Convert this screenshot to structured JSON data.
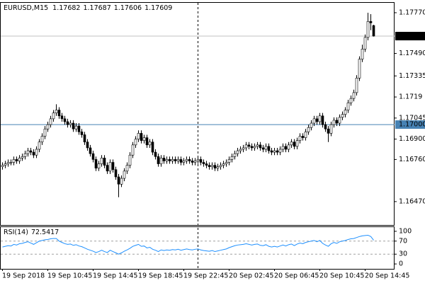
{
  "chart_data": [
    {
      "type": "candlestick",
      "title": "EURUSD,M15",
      "up_color": "#ffffff",
      "down_color": "#000000",
      "ylim": [
        1.16309,
        1.17838
      ],
      "yticks": [
        {
          "value": 1.1777,
          "label": "1.17770"
        },
        {
          "value": 1.1749,
          "label": "1.17490"
        },
        1.17335,
        1.1719,
        1.17045,
        {
          "value": 1.169,
          "label": "1.16900"
        },
        {
          "value": 1.1676,
          "label": "1.16760"
        },
        {
          "value": 1.1647,
          "label": "1.16470"
        }
      ],
      "price_lines": [
        {
          "value": 1.17609,
          "color": "#c0c0c0",
          "label_color": "#000000"
        },
        {
          "value": 1.17,
          "label": "1.17000",
          "color": "#4682b4",
          "label_color": "#4682b4"
        }
      ],
      "categories": [
        "19 Sep 2018",
        null,
        null,
        null,
        null,
        null,
        null,
        null,
        null,
        null,
        null,
        null,
        null,
        null,
        null,
        null,
        "19 Sep 10:45",
        null,
        null,
        null,
        null,
        null,
        null,
        null,
        null,
        null,
        null,
        null,
        null,
        null,
        null,
        null,
        "19 Sep 14:45",
        null,
        null,
        null,
        null,
        null,
        null,
        null,
        null,
        null,
        null,
        null,
        null,
        null,
        null,
        null,
        "19 Sep 18:45",
        null,
        null,
        null,
        null,
        null,
        null,
        null,
        null,
        null,
        null,
        null,
        null,
        null,
        null,
        null,
        "19 Sep 22:45",
        null,
        null,
        null,
        null,
        null,
        null,
        null,
        null,
        null,
        null,
        null,
        null,
        null,
        null,
        null,
        "20 Sep 02:45",
        null,
        null,
        null,
        null,
        null,
        null,
        null,
        null,
        null,
        null,
        null,
        null,
        null,
        null,
        null,
        "20 Sep 06:45",
        null,
        null,
        null,
        null,
        null,
        null,
        null,
        null,
        null,
        null,
        null,
        null,
        null,
        null,
        null,
        "20 Sep 10:45",
        null,
        null,
        null,
        null,
        null,
        null,
        null,
        null,
        null,
        null,
        null,
        null,
        null,
        null,
        null,
        "20 Sep 14:45",
        null,
        null,
        null
      ],
      "open": [
        1.1671,
        1.1672,
        1.1673,
        1.1674,
        1.1674,
        1.1676,
        1.1675,
        1.1677,
        1.1678,
        1.168,
        1.1682,
        1.1681,
        1.1679,
        1.1683,
        1.1688,
        1.1692,
        1.1697,
        1.17,
        1.1704,
        1.1708,
        1.171,
        1.1706,
        1.1704,
        1.1702,
        1.17,
        1.1701,
        1.1697,
        1.1699,
        1.1695,
        1.1693,
        1.1688,
        1.1684,
        1.168,
        1.1676,
        1.167,
        1.1673,
        1.1677,
        1.1672,
        1.1668,
        1.1674,
        1.1669,
        1.1664,
        1.1659,
        1.1663,
        1.1668,
        1.1672,
        1.1679,
        1.1686,
        1.169,
        1.1694,
        1.1689,
        1.1691,
        1.1686,
        1.1688,
        1.1681,
        1.1678,
        1.1673,
        1.1677,
        1.1675,
        1.1676,
        1.1675,
        1.1676,
        1.1675,
        1.1676,
        1.1674,
        1.1675,
        1.1676,
        1.1675,
        1.1674,
        1.1675,
        1.1676,
        1.1674,
        1.1673,
        1.1672,
        1.1671,
        1.1672,
        1.167,
        1.1671,
        1.1672,
        1.1673,
        1.1674,
        1.1676,
        1.1678,
        1.168,
        1.1682,
        1.1683,
        1.1684,
        1.1686,
        1.1685,
        1.1684,
        1.1685,
        1.1686,
        1.1684,
        1.1683,
        1.1685,
        1.1682,
        1.1681,
        1.1682,
        1.1681,
        1.1683,
        1.1685,
        1.1683,
        1.1686,
        1.1688,
        1.1685,
        1.1689,
        1.1692,
        1.1691,
        1.1695,
        1.1698,
        1.1701,
        1.1704,
        1.1702,
        1.1706,
        1.17,
        1.1697,
        1.1694,
        1.17,
        1.1703,
        1.1701,
        1.1705,
        1.1707,
        1.171,
        1.1715,
        1.1718,
        1.1722,
        1.1732,
        1.1745,
        1.1752,
        1.176,
        1.1771,
        1.17682
      ],
      "high": [
        1.1674,
        1.1675,
        1.1676,
        1.1676,
        1.1678,
        1.1678,
        1.1679,
        1.168,
        1.1682,
        1.1684,
        1.1684,
        1.1683,
        1.1685,
        1.169,
        1.1694,
        1.1699,
        1.1702,
        1.1706,
        1.171,
        1.1714,
        1.1712,
        1.1708,
        1.1706,
        1.1704,
        1.1703,
        1.1703,
        1.1701,
        1.1701,
        1.1697,
        1.1695,
        1.169,
        1.1686,
        1.1682,
        1.1678,
        1.1675,
        1.1679,
        1.1679,
        1.1674,
        1.1676,
        1.1676,
        1.1671,
        1.1666,
        1.1665,
        1.167,
        1.1674,
        1.1681,
        1.1688,
        1.1692,
        1.1696,
        1.1696,
        1.1693,
        1.1693,
        1.169,
        1.169,
        1.1683,
        1.168,
        1.1679,
        1.1679,
        1.1678,
        1.1678,
        1.1678,
        1.1678,
        1.1678,
        1.1678,
        1.1677,
        1.1678,
        1.1678,
        1.1677,
        1.1677,
        1.1678,
        1.1678,
        1.1676,
        1.1675,
        1.1674,
        1.1674,
        1.1674,
        1.1673,
        1.1674,
        1.1675,
        1.1676,
        1.1678,
        1.168,
        1.1682,
        1.1684,
        1.1685,
        1.1686,
        1.1688,
        1.1688,
        1.1687,
        1.1687,
        1.1688,
        1.1688,
        1.1686,
        1.1687,
        1.1687,
        1.1684,
        1.1684,
        1.1684,
        1.1685,
        1.1687,
        1.1687,
        1.1688,
        1.169,
        1.169,
        1.1691,
        1.1694,
        1.1694,
        1.1697,
        1.17,
        1.1703,
        1.1706,
        1.1706,
        1.1708,
        1.1708,
        1.1702,
        1.1699,
        1.1702,
        1.1705,
        1.1705,
        1.1707,
        1.1709,
        1.1712,
        1.1717,
        1.172,
        1.1724,
        1.1734,
        1.1747,
        1.1755,
        1.1762,
        1.1777,
        1.1776,
        1.17687
      ],
      "low": [
        1.1669,
        1.167,
        1.1671,
        1.1672,
        1.1672,
        1.1673,
        1.1673,
        1.1675,
        1.1676,
        1.1678,
        1.1679,
        1.1677,
        1.1677,
        1.1681,
        1.1686,
        1.169,
        1.1695,
        1.1698,
        1.1702,
        1.1706,
        1.1704,
        1.1702,
        1.17,
        1.1698,
        1.1698,
        1.1695,
        1.1695,
        1.1693,
        1.1691,
        1.1686,
        1.1682,
        1.1678,
        1.1674,
        1.1668,
        1.1668,
        1.1671,
        1.167,
        1.1666,
        1.1666,
        1.1667,
        1.1662,
        1.165,
        1.1657,
        1.1661,
        1.1666,
        1.167,
        1.1677,
        1.1684,
        1.1688,
        1.1687,
        1.1687,
        1.1684,
        1.1684,
        1.1679,
        1.1676,
        1.1671,
        1.1671,
        1.1673,
        1.1673,
        1.1673,
        1.1673,
        1.1673,
        1.1673,
        1.1672,
        1.1672,
        1.1673,
        1.1673,
        1.1672,
        1.1672,
        1.1673,
        1.1672,
        1.1671,
        1.167,
        1.1669,
        1.1669,
        1.1668,
        1.1668,
        1.1669,
        1.167,
        1.1671,
        1.1672,
        1.1674,
        1.1676,
        1.1678,
        1.168,
        1.1681,
        1.1682,
        1.1683,
        1.1682,
        1.1682,
        1.1683,
        1.1682,
        1.1681,
        1.1681,
        1.168,
        1.1679,
        1.1679,
        1.1679,
        1.1679,
        1.1681,
        1.1681,
        1.1681,
        1.1684,
        1.1683,
        1.1683,
        1.1687,
        1.1689,
        1.1689,
        1.1693,
        1.1696,
        1.1699,
        1.17,
        1.17,
        1.1698,
        1.1695,
        1.1688,
        1.1692,
        1.1698,
        1.1699,
        1.1699,
        1.1703,
        1.1705,
        1.1708,
        1.1713,
        1.1716,
        1.172,
        1.173,
        1.1743,
        1.175,
        1.1758,
        1.1765,
        1.17606
      ],
      "close": [
        1.1672,
        1.1673,
        1.1674,
        1.1674,
        1.1676,
        1.1675,
        1.1677,
        1.1678,
        1.168,
        1.1682,
        1.1681,
        1.1679,
        1.1683,
        1.1688,
        1.1692,
        1.1697,
        1.17,
        1.1704,
        1.1708,
        1.171,
        1.1706,
        1.1704,
        1.1702,
        1.17,
        1.1701,
        1.1697,
        1.1699,
        1.1695,
        1.1693,
        1.1688,
        1.1684,
        1.168,
        1.1676,
        1.167,
        1.1673,
        1.1677,
        1.1672,
        1.1668,
        1.1674,
        1.1669,
        1.1664,
        1.1659,
        1.1663,
        1.1668,
        1.1672,
        1.1679,
        1.1686,
        1.169,
        1.1694,
        1.1689,
        1.1691,
        1.1686,
        1.1688,
        1.1681,
        1.1678,
        1.1673,
        1.1677,
        1.1675,
        1.1676,
        1.1675,
        1.1676,
        1.1675,
        1.1676,
        1.1674,
        1.1675,
        1.1676,
        1.1675,
        1.1674,
        1.1675,
        1.1676,
        1.1674,
        1.1673,
        1.1672,
        1.1671,
        1.1672,
        1.167,
        1.1671,
        1.1672,
        1.1673,
        1.1674,
        1.1676,
        1.1678,
        1.168,
        1.1682,
        1.1683,
        1.1684,
        1.1686,
        1.1685,
        1.1684,
        1.1685,
        1.1686,
        1.1684,
        1.1683,
        1.1685,
        1.1682,
        1.1681,
        1.1682,
        1.1681,
        1.1683,
        1.1685,
        1.1683,
        1.1686,
        1.1688,
        1.1685,
        1.1689,
        1.1692,
        1.1691,
        1.1695,
        1.1698,
        1.1701,
        1.1704,
        1.1702,
        1.1706,
        1.17,
        1.1697,
        1.1694,
        1.17,
        1.1703,
        1.1701,
        1.1705,
        1.1707,
        1.171,
        1.1715,
        1.1718,
        1.1722,
        1.1732,
        1.1745,
        1.1752,
        1.176,
        1.1771,
        1.177,
        1.17609
      ]
    },
    {
      "type": "line",
      "title": "RSI(14)",
      "color": "#1e90ff",
      "ylim": [
        -15,
        115
      ],
      "yticks": [
        100,
        70,
        30,
        0
      ],
      "levels": [
        70,
        30
      ],
      "values": [
        52,
        54,
        56,
        55,
        60,
        58,
        62,
        63,
        66,
        68,
        64,
        60,
        65,
        70,
        72,
        74,
        75,
        77,
        78,
        78,
        70,
        66,
        62,
        60,
        61,
        57,
        59,
        55,
        53,
        49,
        45,
        42,
        39,
        35,
        38,
        42,
        38,
        35,
        42,
        38,
        34,
        30,
        34,
        39,
        43,
        48,
        54,
        57,
        60,
        54,
        55,
        49,
        51,
        45,
        42,
        38,
        43,
        41,
        43,
        42,
        44,
        43,
        45,
        42,
        44,
        46,
        44,
        43,
        45,
        46,
        43,
        41,
        40,
        39,
        41,
        38,
        40,
        42,
        44,
        46,
        50,
        53,
        56,
        58,
        59,
        60,
        62,
        60,
        58,
        60,
        61,
        57,
        56,
        59,
        54,
        52,
        54,
        52,
        55,
        58,
        55,
        59,
        61,
        56,
        61,
        64,
        62,
        66,
        68,
        70,
        72,
        68,
        72,
        63,
        58,
        54,
        62,
        66,
        63,
        68,
        70,
        72,
        75,
        77,
        78,
        81,
        84,
        86,
        87,
        88,
        84,
        72.5417
      ]
    }
  ]
}
